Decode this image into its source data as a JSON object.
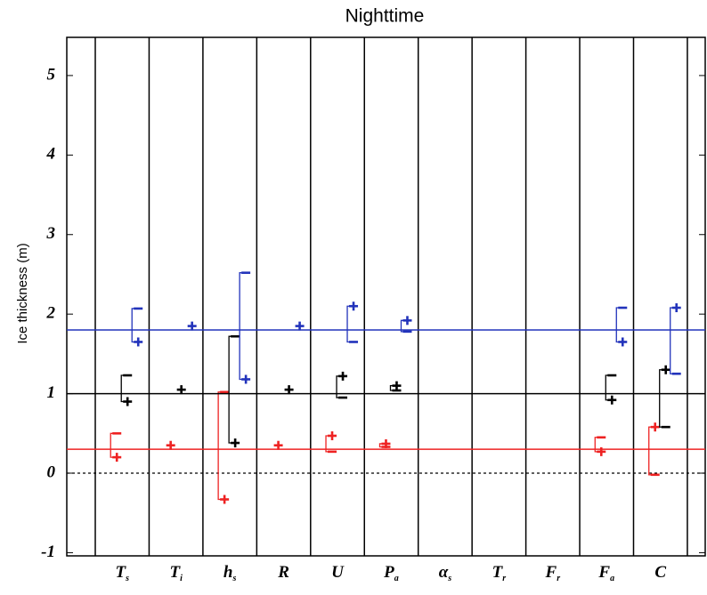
{
  "chart_data": {
    "type": "perturbation",
    "title": "Nighttime",
    "y_label": "Ice thickness (m)",
    "categories": [
      "T",
      "T",
      "h",
      "R",
      "U",
      "P",
      "α",
      "T",
      "F",
      "F",
      "C"
    ],
    "category_subscripts": [
      "s",
      "i",
      "s",
      null,
      null,
      "a",
      "s",
      "r",
      "r",
      "a",
      null
    ],
    "ylim": [
      -1.04,
      5.48
    ],
    "yticks": [
      -1,
      0,
      1,
      2,
      3,
      4,
      5
    ],
    "zero_line": 0,
    "series": [
      {
        "color": "#ee2222",
        "reference": 0.3,
        "plus": [
          0.2,
          0.35,
          -0.33,
          0.35,
          0.47,
          0.37,
          null,
          null,
          null,
          0.27,
          0.58
        ],
        "minus": [
          0.5,
          null,
          1.02,
          null,
          0.27,
          0.33,
          null,
          null,
          null,
          0.45,
          -0.02
        ]
      },
      {
        "color": "#000000",
        "reference": 1.0,
        "plus": [
          0.9,
          1.05,
          0.38,
          1.05,
          1.22,
          1.1,
          null,
          null,
          null,
          0.92,
          1.3
        ],
        "minus": [
          1.23,
          null,
          1.72,
          null,
          0.95,
          1.04,
          null,
          null,
          null,
          1.23,
          0.58
        ]
      },
      {
        "color": "#2233bb",
        "reference": 1.8,
        "plus": [
          1.65,
          1.85,
          1.18,
          1.85,
          2.1,
          1.92,
          null,
          null,
          null,
          1.65,
          2.08
        ],
        "minus": [
          2.07,
          null,
          2.52,
          null,
          1.65,
          1.78,
          null,
          null,
          null,
          2.08,
          1.25
        ]
      }
    ]
  }
}
